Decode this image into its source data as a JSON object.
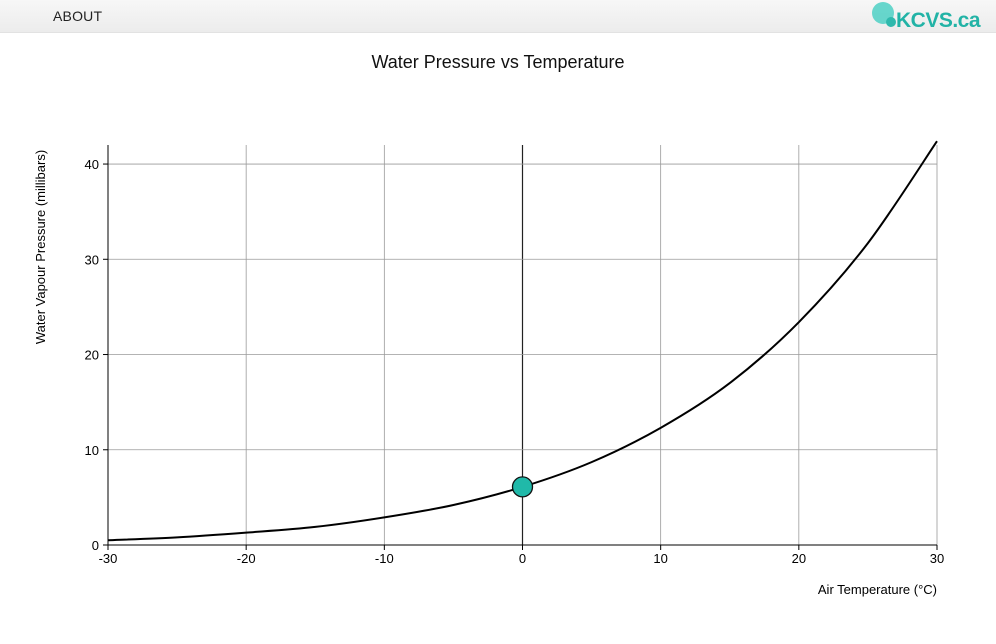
{
  "header": {
    "about_label": "ABOUT",
    "logo_text": "KCVS.ca"
  },
  "colors": {
    "accent": "#20b9a9",
    "curve": "#000000",
    "grid": "#888888"
  },
  "chart_data": {
    "type": "line",
    "title": "Water Pressure vs Temperature",
    "xlabel": "Air Temperature (°C)",
    "ylabel": "Water Vapour Pressure (millibars)",
    "xlim": [
      -30,
      30
    ],
    "ylim": [
      0,
      42
    ],
    "x_ticks": [
      -30,
      -20,
      -10,
      0,
      10,
      20,
      30
    ],
    "y_ticks": [
      0,
      10,
      20,
      30,
      40
    ],
    "grid": true,
    "series": [
      {
        "x": [
          -30,
          -25,
          -20,
          -15,
          -10,
          -5,
          0,
          5,
          10,
          15,
          20,
          25,
          30
        ],
        "y": [
          0.5,
          0.8,
          1.3,
          1.9,
          2.9,
          4.2,
          6.1,
          8.7,
          12.3,
          17.0,
          23.4,
          31.7,
          42.4
        ]
      }
    ],
    "highlight_point": {
      "x": 0,
      "y": 6.1
    }
  }
}
